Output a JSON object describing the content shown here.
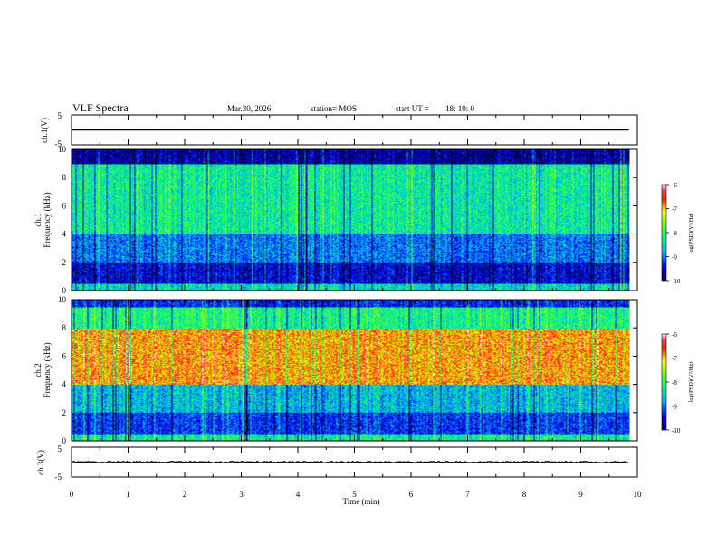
{
  "header": {
    "title": "VLF Spectra",
    "date": "Mar.30, 2026",
    "station": "station= MOS",
    "start_label": "start  UT =",
    "start_time": "18: 10: 0"
  },
  "chart_data": [
    {
      "type": "line",
      "panel": "ch1-waveform",
      "ylabel": "ch.1(V)",
      "ylim": [
        -5,
        5
      ],
      "yticks": [
        "5",
        "-5"
      ],
      "xlim": [
        0,
        10
      ],
      "series_level": 0
    },
    {
      "type": "heatmap",
      "panel": "ch1-spectrogram",
      "ylabel_line1": "ch.1",
      "ylabel_line2": "Frequency (kHz)",
      "ylim": [
        0,
        10
      ],
      "yticks": [
        "0",
        "2",
        "4",
        "6",
        "8",
        "10"
      ],
      "xlim": [
        0,
        10
      ],
      "data_end_min": 9.85,
      "colorbar": {
        "label": "log(PSD)(V²/Hz)",
        "range": [
          -10,
          -6
        ],
        "ticks": [
          "-6",
          "-7",
          "-8",
          "-9",
          "-10"
        ]
      },
      "dominant_log_psd_by_band": [
        {
          "f_khz": [
            0,
            0.5
          ],
          "value": -8.5
        },
        {
          "f_khz": [
            0.5,
            2
          ],
          "value": -9.6
        },
        {
          "f_khz": [
            2,
            4
          ],
          "value": -9.0
        },
        {
          "f_khz": [
            4,
            9
          ],
          "value": -8.3
        },
        {
          "f_khz": [
            9,
            10
          ],
          "value": -9.8
        }
      ]
    },
    {
      "type": "heatmap",
      "panel": "ch2-spectrogram",
      "ylabel_line1": "ch.2",
      "ylabel_line2": "Frequency (kHz)",
      "ylim": [
        0,
        10
      ],
      "yticks": [
        "0",
        "2",
        "4",
        "6",
        "8",
        "10"
      ],
      "xlim": [
        0,
        10
      ],
      "data_end_min": 9.85,
      "colorbar": {
        "label": "log(PSD)(V²/Hz)",
        "range": [
          -10,
          -6
        ],
        "ticks": [
          "-6",
          "-7",
          "-8",
          "-9",
          "-10"
        ]
      },
      "dominant_log_psd_by_band": [
        {
          "f_khz": [
            0,
            0.5
          ],
          "value": -8.3
        },
        {
          "f_khz": [
            0.5,
            2
          ],
          "value": -9.3
        },
        {
          "f_khz": [
            2,
            4
          ],
          "value": -8.7
        },
        {
          "f_khz": [
            4,
            8
          ],
          "value": -6.9
        },
        {
          "f_khz": [
            8,
            9.5
          ],
          "value": -8.2
        },
        {
          "f_khz": [
            9.5,
            10
          ],
          "value": -9.4
        }
      ]
    },
    {
      "type": "line",
      "panel": "ch3-waveform",
      "ylabel": "ch.3(V)",
      "ylim": [
        -5,
        5
      ],
      "yticks": [
        "5",
        "-5"
      ],
      "xlim": [
        0,
        10
      ],
      "series_level": 0,
      "xlabel": "Time (min)",
      "xticks": [
        "0",
        "1",
        "2",
        "3",
        "4",
        "5",
        "6",
        "7",
        "8",
        "9",
        "10"
      ]
    }
  ]
}
